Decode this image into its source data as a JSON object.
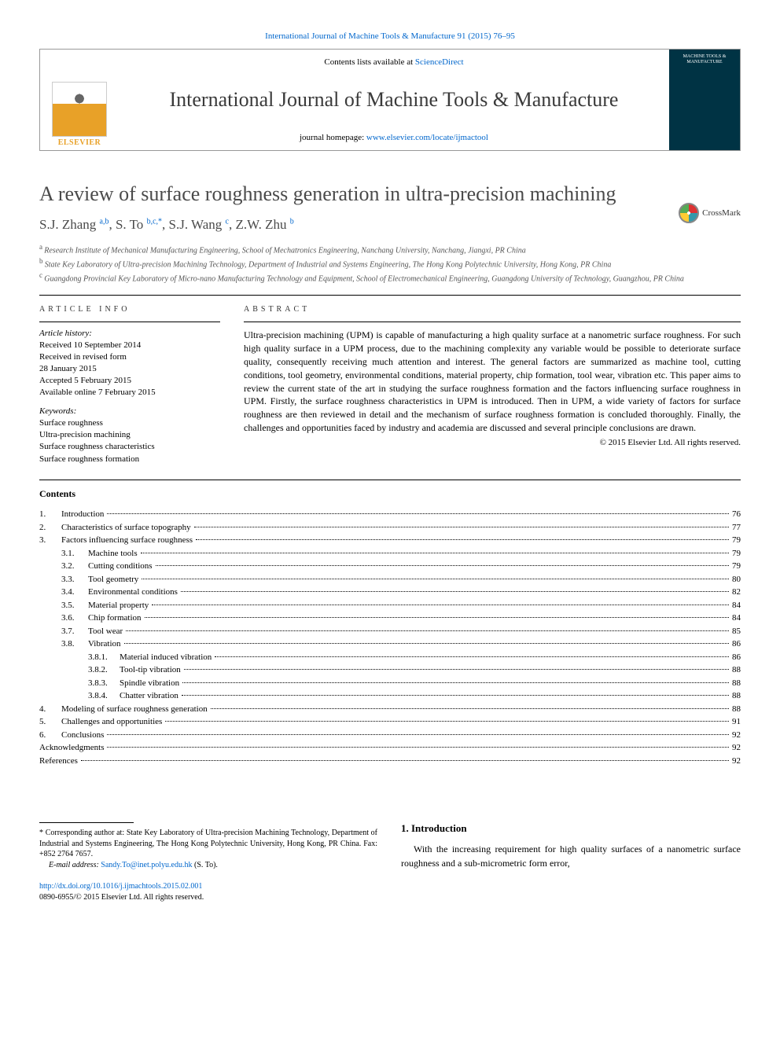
{
  "citation": "International Journal of Machine Tools & Manufacture 91 (2015) 76–95",
  "header": {
    "contents_prefix": "Contents lists available at ",
    "contents_link": "ScienceDirect",
    "journal_name": "International Journal of Machine Tools & Manufacture",
    "homepage_prefix": "journal homepage: ",
    "homepage_link": "www.elsevier.com/locate/ijmactool",
    "elsevier_label": "ELSEVIER",
    "cover_label": "MACHINE TOOLS & MANUFACTURE"
  },
  "crossmark_label": "CrossMark",
  "title": "A review of surface roughness generation in ultra-precision machining",
  "authors_html": "S.J. Zhang <sup>a,b</sup>, S. To <sup>b,c,*</sup>, S.J. Wang <sup>c</sup>, Z.W. Zhu <sup>b</sup>",
  "authors": [
    {
      "name": "S.J. Zhang",
      "sup": "a,b"
    },
    {
      "name": "S. To",
      "sup": "b,c,*"
    },
    {
      "name": "S.J. Wang",
      "sup": "c"
    },
    {
      "name": "Z.W. Zhu",
      "sup": "b"
    }
  ],
  "affiliations": [
    {
      "sup": "a",
      "text": "Research Institute of Mechanical Manufacturing Engineering, School of Mechatronics Engineering, Nanchang University, Nanchang, Jiangxi, PR China"
    },
    {
      "sup": "b",
      "text": "State Key Laboratory of Ultra-precision Machining Technology, Department of Industrial and Systems Engineering, The Hong Kong Polytechnic University, Hong Kong, PR China"
    },
    {
      "sup": "c",
      "text": "Guangdong Provincial Key Laboratory of Micro-nano Manufacturing Technology and Equipment, School of Electromechanical Engineering, Guangdong University of Technology, Guangzhou, PR China"
    }
  ],
  "article_info_heading": "ARTICLE INFO",
  "abstract_heading": "ABSTRACT",
  "history_label": "Article history:",
  "history": [
    "Received 10 September 2014",
    "Received in revised form",
    "28 January 2015",
    "Accepted 5 February 2015",
    "Available online 7 February 2015"
  ],
  "keywords_label": "Keywords:",
  "keywords": [
    "Surface roughness",
    "Ultra-precision machining",
    "Surface roughness characteristics",
    "Surface roughness formation"
  ],
  "abstract": "Ultra-precision machining (UPM) is capable of manufacturing a high quality surface at a nanometric surface roughness. For such high quality surface in a UPM process, due to the machining complexity any variable would be possible to deteriorate surface quality, consequently receiving much attention and interest. The general factors are summarized as machine tool, cutting conditions, tool geometry, environmental conditions, material property, chip formation, tool wear, vibration etc. This paper aims to review the current state of the art in studying the surface roughness formation and the factors influencing surface roughness in UPM. Firstly, the surface roughness characteristics in UPM is introduced. Then in UPM, a wide variety of factors for surface roughness are then reviewed in detail and the mechanism of surface roughness formation is concluded thoroughly. Finally, the challenges and opportunities faced by industry and academia are discussed and several principle conclusions are drawn.",
  "copyright": "© 2015 Elsevier Ltd. All rights reserved.",
  "contents_heading": "Contents",
  "toc": [
    {
      "level": 1,
      "num": "1.",
      "title": "Introduction",
      "page": "76"
    },
    {
      "level": 1,
      "num": "2.",
      "title": "Characteristics of surface topography",
      "page": "77"
    },
    {
      "level": 1,
      "num": "3.",
      "title": "Factors influencing surface roughness",
      "page": "79"
    },
    {
      "level": 2,
      "num": "3.1.",
      "title": "Machine tools",
      "page": "79"
    },
    {
      "level": 2,
      "num": "3.2.",
      "title": "Cutting conditions",
      "page": "79"
    },
    {
      "level": 2,
      "num": "3.3.",
      "title": "Tool geometry",
      "page": "80"
    },
    {
      "level": 2,
      "num": "3.4.",
      "title": "Environmental conditions",
      "page": "82"
    },
    {
      "level": 2,
      "num": "3.5.",
      "title": "Material property",
      "page": "84"
    },
    {
      "level": 2,
      "num": "3.6.",
      "title": "Chip formation",
      "page": "84"
    },
    {
      "level": 2,
      "num": "3.7.",
      "title": "Tool wear",
      "page": "85"
    },
    {
      "level": 2,
      "num": "3.8.",
      "title": "Vibration",
      "page": "86"
    },
    {
      "level": 3,
      "num": "3.8.1.",
      "title": "Material induced vibration",
      "page": "86"
    },
    {
      "level": 3,
      "num": "3.8.2.",
      "title": "Tool-tip vibration",
      "page": "88"
    },
    {
      "level": 3,
      "num": "3.8.3.",
      "title": "Spindle vibration",
      "page": "88"
    },
    {
      "level": 3,
      "num": "3.8.4.",
      "title": "Chatter vibration",
      "page": "88"
    },
    {
      "level": 1,
      "num": "4.",
      "title": "Modeling of surface roughness generation",
      "page": "88"
    },
    {
      "level": 1,
      "num": "5.",
      "title": "Challenges and opportunities",
      "page": "91"
    },
    {
      "level": 1,
      "num": "6.",
      "title": "Conclusions",
      "page": "92"
    },
    {
      "level": 0,
      "num": "",
      "title": "Acknowledgments",
      "page": "92"
    },
    {
      "level": 0,
      "num": "",
      "title": "References",
      "page": "92"
    }
  ],
  "corr": {
    "marker": "*",
    "text": "Corresponding author at: State Key Laboratory of Ultra-precision Machining Technology, Department of Industrial and Systems Engineering, The Hong Kong Polytechnic University, Hong Kong, PR China. Fax: +852 2764 7657.",
    "email_label": "E-mail address: ",
    "email": "Sandy.To@inet.polyu.edu.hk",
    "email_suffix": " (S. To)."
  },
  "intro": {
    "heading": "1. Introduction",
    "para": "With the increasing requirement for high quality surfaces of a nanometric surface roughness and a sub-micrometric form error,"
  },
  "doi": {
    "link": "http://dx.doi.org/10.1016/j.ijmachtools.2015.02.001",
    "issn_line": "0890-6955/© 2015 Elsevier Ltd. All rights reserved."
  },
  "colors": {
    "link": "#0066cc",
    "text": "#000000",
    "heading_gray": "#4a4a4a",
    "elsevier_orange": "#e8a128",
    "cover_bg": "#003344"
  },
  "typography": {
    "body_fontsize": 13,
    "title_fontsize": 26,
    "authors_fontsize": 17,
    "small_fontsize": 11,
    "tiny_fontsize": 10
  }
}
